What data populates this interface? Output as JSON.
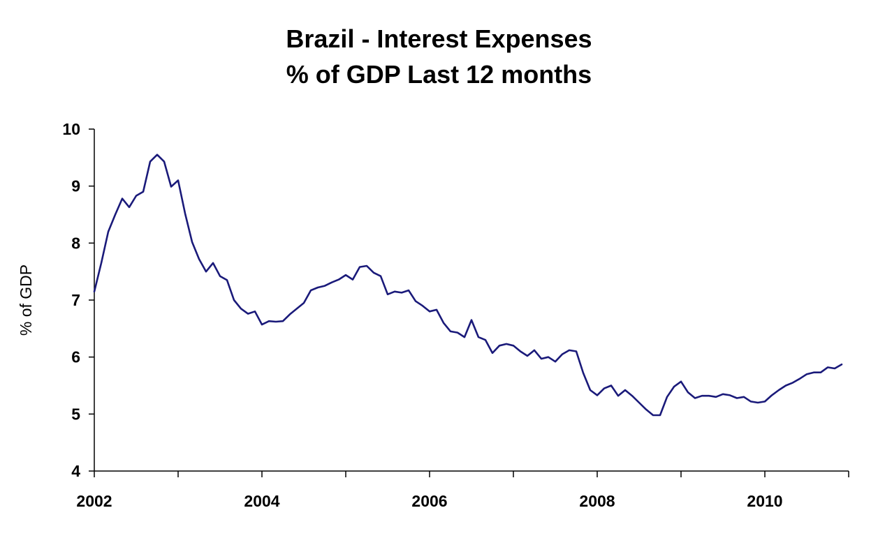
{
  "chart_data": {
    "type": "line",
    "title_lines": [
      "Brazil - Interest Expenses",
      "% of GDP Last 12 months"
    ],
    "xlabel": "",
    "ylabel": "% of GDP",
    "ylim": [
      4,
      10
    ],
    "yticks": [
      4,
      5,
      6,
      7,
      8,
      9,
      10
    ],
    "xlim": [
      2002,
      2011
    ],
    "xticks": [
      2002,
      2004,
      2006,
      2008,
      2010
    ],
    "grid": false,
    "legend": "none",
    "line_color": "#1a1a7a",
    "series": [
      {
        "x": [
          "2002-01",
          "2002-02",
          "2002-03",
          "2002-04",
          "2002-05",
          "2002-06",
          "2002-07",
          "2002-08",
          "2002-09",
          "2002-10",
          "2002-11",
          "2002-12",
          "2003-01",
          "2003-02",
          "2003-03",
          "2003-04",
          "2003-05",
          "2003-06",
          "2003-07",
          "2003-08",
          "2003-09",
          "2003-10",
          "2003-11",
          "2003-12",
          "2004-01",
          "2004-02",
          "2004-03",
          "2004-04",
          "2004-05",
          "2004-06",
          "2004-07",
          "2004-08",
          "2004-09",
          "2004-10",
          "2004-11",
          "2004-12",
          "2005-01",
          "2005-02",
          "2005-03",
          "2005-04",
          "2005-05",
          "2005-06",
          "2005-07",
          "2005-08",
          "2005-09",
          "2005-10",
          "2005-11",
          "2005-12",
          "2006-01",
          "2006-02",
          "2006-03",
          "2006-04",
          "2006-05",
          "2006-06",
          "2006-07",
          "2006-08",
          "2006-09",
          "2006-10",
          "2006-11",
          "2006-12",
          "2007-01",
          "2007-02",
          "2007-03",
          "2007-04",
          "2007-05",
          "2007-06",
          "2007-07",
          "2007-08",
          "2007-09",
          "2007-10",
          "2007-11",
          "2007-12",
          "2008-01",
          "2008-02",
          "2008-03",
          "2008-04",
          "2008-05",
          "2008-06",
          "2008-07",
          "2008-08",
          "2008-09",
          "2008-10",
          "2008-11",
          "2008-12",
          "2009-01",
          "2009-02",
          "2009-03",
          "2009-04",
          "2009-05",
          "2009-06",
          "2009-07",
          "2009-08",
          "2009-09",
          "2009-10",
          "2009-11",
          "2009-12",
          "2010-01",
          "2010-02",
          "2010-03",
          "2010-04",
          "2010-05",
          "2010-06",
          "2010-07",
          "2010-08",
          "2010-09",
          "2010-10",
          "2010-11",
          "2010-12"
        ],
        "values": [
          7.15,
          7.65,
          8.2,
          8.5,
          8.78,
          8.63,
          8.83,
          8.9,
          9.43,
          9.55,
          9.43,
          8.99,
          9.1,
          8.52,
          8.02,
          7.72,
          7.5,
          7.65,
          7.42,
          7.35,
          7.0,
          6.85,
          6.76,
          6.8,
          6.57,
          6.63,
          6.62,
          6.63,
          6.75,
          6.85,
          6.95,
          7.17,
          7.22,
          7.25,
          7.31,
          7.36,
          7.44,
          7.36,
          7.58,
          7.6,
          7.48,
          7.42,
          7.1,
          7.15,
          7.13,
          7.17,
          6.98,
          6.9,
          6.8,
          6.83,
          6.6,
          6.45,
          6.43,
          6.35,
          6.65,
          6.35,
          6.3,
          6.07,
          6.2,
          6.23,
          6.2,
          6.1,
          6.02,
          6.12,
          5.97,
          6.0,
          5.92,
          6.05,
          6.12,
          6.1,
          5.72,
          5.42,
          5.33,
          5.45,
          5.5,
          5.32,
          5.42,
          5.32,
          5.2,
          5.08,
          4.98,
          4.98,
          5.3,
          5.48,
          5.57,
          5.38,
          5.28,
          5.32,
          5.32,
          5.3,
          5.35,
          5.33,
          5.28,
          5.3,
          5.22,
          5.2,
          5.22,
          5.33,
          5.42,
          5.5,
          5.55,
          5.62,
          5.7,
          5.73,
          5.73,
          5.82,
          5.8,
          5.87
        ]
      }
    ]
  }
}
